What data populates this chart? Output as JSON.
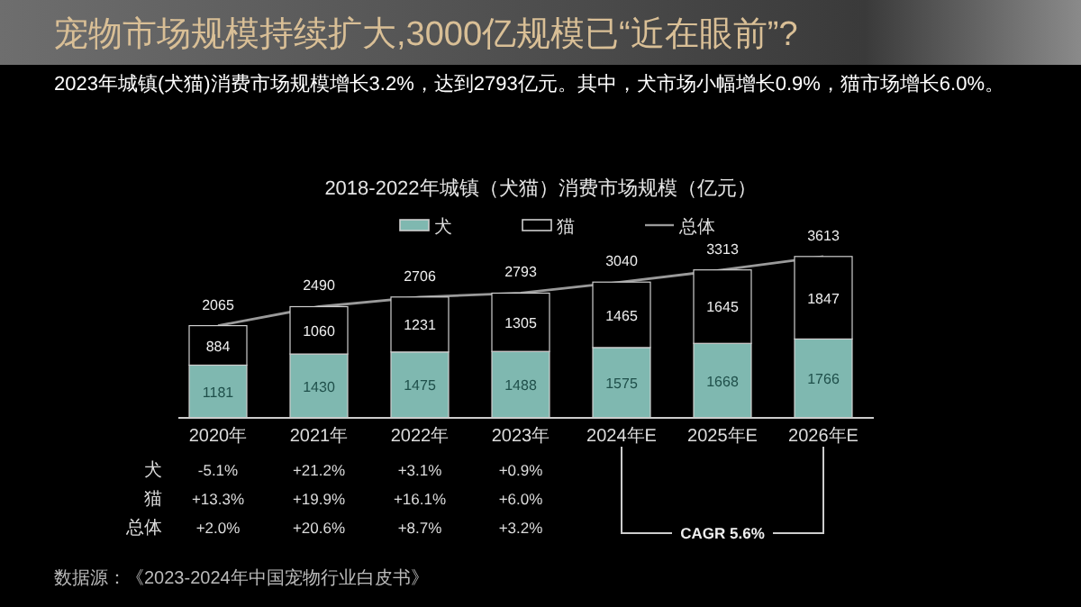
{
  "chart_data": {
    "type": "bar",
    "stacked": true,
    "title": "宠物市场规模持续扩大,3000亿规模已“近在眼前”?",
    "subtitle": "2023年城镇(犬猫)消费市场规模增长3.2%，达到2793亿元。其中，犬市场小幅增长0.9%，猫市场增长6.0%。",
    "categories": [
      "2020年",
      "2021年",
      "2022年",
      "2023年",
      "2024年E",
      "2025年E",
      "2026年E"
    ],
    "series": [
      {
        "name": "犬",
        "color": "#7fb8b0",
        "values": [
          1181,
          1430,
          1475,
          1488,
          1575,
          1668,
          1766
        ]
      },
      {
        "name": "猫",
        "color": "#000000",
        "values": [
          884,
          1060,
          1231,
          1305,
          1465,
          1645,
          1847
        ]
      },
      {
        "name": "总体",
        "type": "line",
        "color": "#9a9a9a",
        "values": [
          2065,
          2490,
          2706,
          2793,
          3040,
          3313,
          3613
        ]
      }
    ],
    "data_labels": true,
    "legend": "top",
    "grid": false,
    "annotations": [
      "犬",
      "-5.1%",
      "+21.2%",
      "+3.1%",
      "+0.9%",
      "猫",
      "+13.3%",
      "+19.9%",
      "+16.1%",
      "+6.0%",
      "总体",
      "+2.0%",
      "+20.6%",
      "+8.7%",
      "+3.2%",
      "CAGR 5.6%",
      "数据源：《2023-2024年中国宠物行业白皮书》",
      "2018-2022年城镇（犬猫）消费市场规模（亿元）"
    ]
  }
}
